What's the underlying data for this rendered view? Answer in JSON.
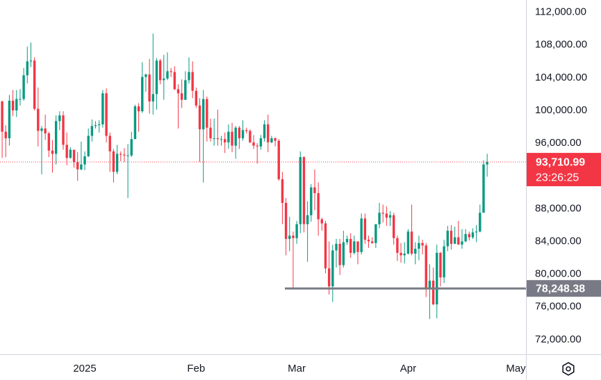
{
  "chart_data": {
    "type": "candlestick",
    "up_color": "#089981",
    "down_color": "#f23645",
    "xlim": [
      -0.6,
      145.8
    ],
    "xticks": [
      {
        "value": 23,
        "label": "2025"
      },
      {
        "value": 54,
        "label": "Feb"
      },
      {
        "value": 82,
        "label": "Mar"
      },
      {
        "value": 113,
        "label": "Apr"
      },
      {
        "value": 143,
        "label": "May"
      }
    ],
    "ylim": [
      70200,
      113500
    ],
    "yticks": [
      {
        "value": 72000,
        "label": "72,000.00"
      },
      {
        "value": 76000,
        "label": "76,000.00"
      },
      {
        "value": 80000,
        "label": "80,000.00"
      },
      {
        "value": 84000,
        "label": "84,000.00"
      },
      {
        "value": 88000,
        "label": "88,000.00"
      },
      {
        "value": 96000,
        "label": "96,000.00"
      },
      {
        "value": 100000,
        "label": "100,000.00"
      },
      {
        "value": 104000,
        "label": "104,000.00"
      },
      {
        "value": 108000,
        "label": "108,000.00"
      },
      {
        "value": 112000,
        "label": "112,000.00"
      }
    ],
    "open": [
      101100,
      97400,
      96600,
      101200,
      100000,
      101400,
      101400,
      104300,
      106000,
      106100,
      100200,
      97500,
      97800,
      97200,
      95100,
      94700,
      98700,
      99400,
      95800,
      94200,
      95200,
      93700,
      92800,
      93400,
      94400,
      96900,
      98100,
      98200,
      98300,
      102100,
      96900,
      95000,
      92500,
      94700,
      94600,
      94500,
      94500,
      96500,
      100500,
      99900,
      104100,
      104400,
      101100,
      102000,
      106100,
      103700,
      103900,
      104800,
      104700,
      102600,
      102100,
      101300,
      103700,
      104700,
      102400,
      100600,
      97700,
      101400,
      97900,
      96600,
      96600,
      96500,
      96500,
      96100,
      97400,
      95700,
      97900,
      96600,
      97600,
      97500,
      96100,
      95700,
      95600,
      96600,
      98300,
      96100,
      96600,
      96300,
      91600,
      88700,
      84300,
      84700,
      84400,
      86100,
      94300,
      86100,
      87200,
      90600,
      89900,
      86700,
      86200,
      80700,
      78500,
      82900,
      83700,
      81100,
      83900,
      84300,
      82600,
      84000,
      82700,
      86800,
      84200,
      84000,
      83800,
      86100,
      87500,
      87400,
      86900,
      87200,
      84400,
      82600,
      82300,
      82500,
      85200,
      82500,
      83100,
      83800,
      83500,
      78200,
      79200,
      76300,
      82600,
      79600,
      83400,
      85300,
      83700,
      84500,
      83600,
      84000,
      84900,
      84500,
      85100,
      85200,
      87500,
      93400
    ],
    "high": [
      101200,
      98200,
      101900,
      102500,
      102500,
      102600,
      105200,
      107800,
      108300,
      106500,
      102800,
      98100,
      99500,
      97400,
      96400,
      99400,
      99900,
      99900,
      97300,
      95500,
      95200,
      94900,
      96200,
      95000,
      97800,
      98900,
      98700,
      98800,
      102500,
      102700,
      97300,
      95300,
      95800,
      95000,
      95400,
      95900,
      97400,
      100700,
      100900,
      105900,
      104500,
      106300,
      109400,
      106400,
      106300,
      106800,
      107100,
      105200,
      105400,
      103200,
      103800,
      104800,
      106500,
      106000,
      102800,
      101500,
      102500,
      101700,
      99000,
      99000,
      100100,
      96900,
      97300,
      98300,
      98500,
      98100,
      98100,
      98800,
      97900,
      97700,
      97000,
      96000,
      97000,
      98800,
      99500,
      96900,
      96700,
      96500,
      92500,
      89300,
      87000,
      85200,
      86500,
      95000,
      94400,
      88900,
      91000,
      92800,
      91200,
      86900,
      86500,
      84000,
      83600,
      84300,
      84300,
      85300,
      84700,
      85000,
      84700,
      84000,
      87400,
      87400,
      84700,
      84500,
      86100,
      88700,
      88500,
      88300,
      87700,
      87500,
      84700,
      83800,
      83900,
      85500,
      88500,
      83900,
      84700,
      84200,
      83800,
      81200,
      80800,
      83600,
      82700,
      84200,
      85900,
      86000,
      85800,
      86500,
      85500,
      85500,
      85200,
      85600,
      86000,
      88500,
      93900,
      94700
    ],
    "low": [
      94200,
      94300,
      95700,
      99300,
      99200,
      100600,
      101200,
      103300,
      105300,
      100000,
      95600,
      92200,
      96400,
      94300,
      92400,
      93400,
      97600,
      95200,
      93300,
      94100,
      93000,
      91400,
      92700,
      92700,
      94300,
      96200,
      97800,
      97300,
      97900,
      96100,
      92500,
      91200,
      92200,
      93800,
      93700,
      89300,
      94300,
      96500,
      97400,
      99700,
      102300,
      99600,
      99500,
      100100,
      103200,
      101300,
      103700,
      104100,
      102500,
      97800,
      100300,
      101300,
      103300,
      101500,
      100300,
      93700,
      91200,
      96200,
      96200,
      95700,
      95700,
      95700,
      94800,
      95300,
      94900,
      94100,
      95300,
      96300,
      97200,
      96000,
      95300,
      93500,
      95200,
      96200,
      94900,
      96000,
      95600,
      91400,
      86100,
      82300,
      82800,
      78300,
      83700,
      85000,
      85100,
      81500,
      86400,
      87800,
      84700,
      85300,
      80100,
      77500,
      76600,
      80800,
      79900,
      80800,
      83600,
      82000,
      82400,
      81200,
      82400,
      83700,
      83200,
      83700,
      83200,
      85600,
      86300,
      85900,
      85900,
      83600,
      81600,
      81400,
      81300,
      82400,
      82300,
      81200,
      81700,
      82400,
      77200,
      74500,
      76200,
      74600,
      78500,
      78900,
      82800,
      83000,
      83700,
      83600,
      83100,
      83900,
      84100,
      84300,
      83900,
      85100,
      87500,
      91900
    ],
    "close": [
      97400,
      96600,
      101200,
      100000,
      101400,
      101400,
      104300,
      106000,
      106100,
      100200,
      97500,
      97800,
      97200,
      95100,
      94700,
      98700,
      99400,
      95800,
      94200,
      95200,
      93700,
      92800,
      93400,
      94400,
      96900,
      98100,
      98200,
      98300,
      102100,
      96900,
      95000,
      92500,
      94700,
      94600,
      94500,
      94500,
      96500,
      100500,
      99900,
      104100,
      104400,
      101100,
      102000,
      106100,
      103700,
      103900,
      104800,
      104700,
      102600,
      102100,
      101300,
      103700,
      104700,
      102400,
      100600,
      97700,
      101400,
      97900,
      96600,
      96600,
      96500,
      96500,
      96100,
      97400,
      95700,
      97900,
      96600,
      97600,
      97500,
      96100,
      95700,
      95600,
      96600,
      98300,
      96100,
      96600,
      96300,
      91600,
      88700,
      84300,
      84700,
      84400,
      86100,
      94300,
      86100,
      87200,
      90600,
      89900,
      86700,
      86200,
      80700,
      78500,
      82900,
      83700,
      81100,
      83900,
      84300,
      82600,
      84000,
      82700,
      86800,
      84200,
      84000,
      83800,
      86100,
      87500,
      87400,
      86900,
      87200,
      84400,
      82600,
      82300,
      82500,
      85200,
      82500,
      83100,
      83800,
      83500,
      78200,
      79200,
      76300,
      82600,
      79600,
      83400,
      85300,
      83700,
      84500,
      83600,
      84000,
      84900,
      84500,
      85100,
      85200,
      87500,
      93400,
      93710.99
    ],
    "last_price": {
      "value": 93710.99,
      "label": "93,710.99"
    },
    "countdown": "23:26:25",
    "level": {
      "value": 78248.38,
      "label": "78,248.38"
    }
  }
}
